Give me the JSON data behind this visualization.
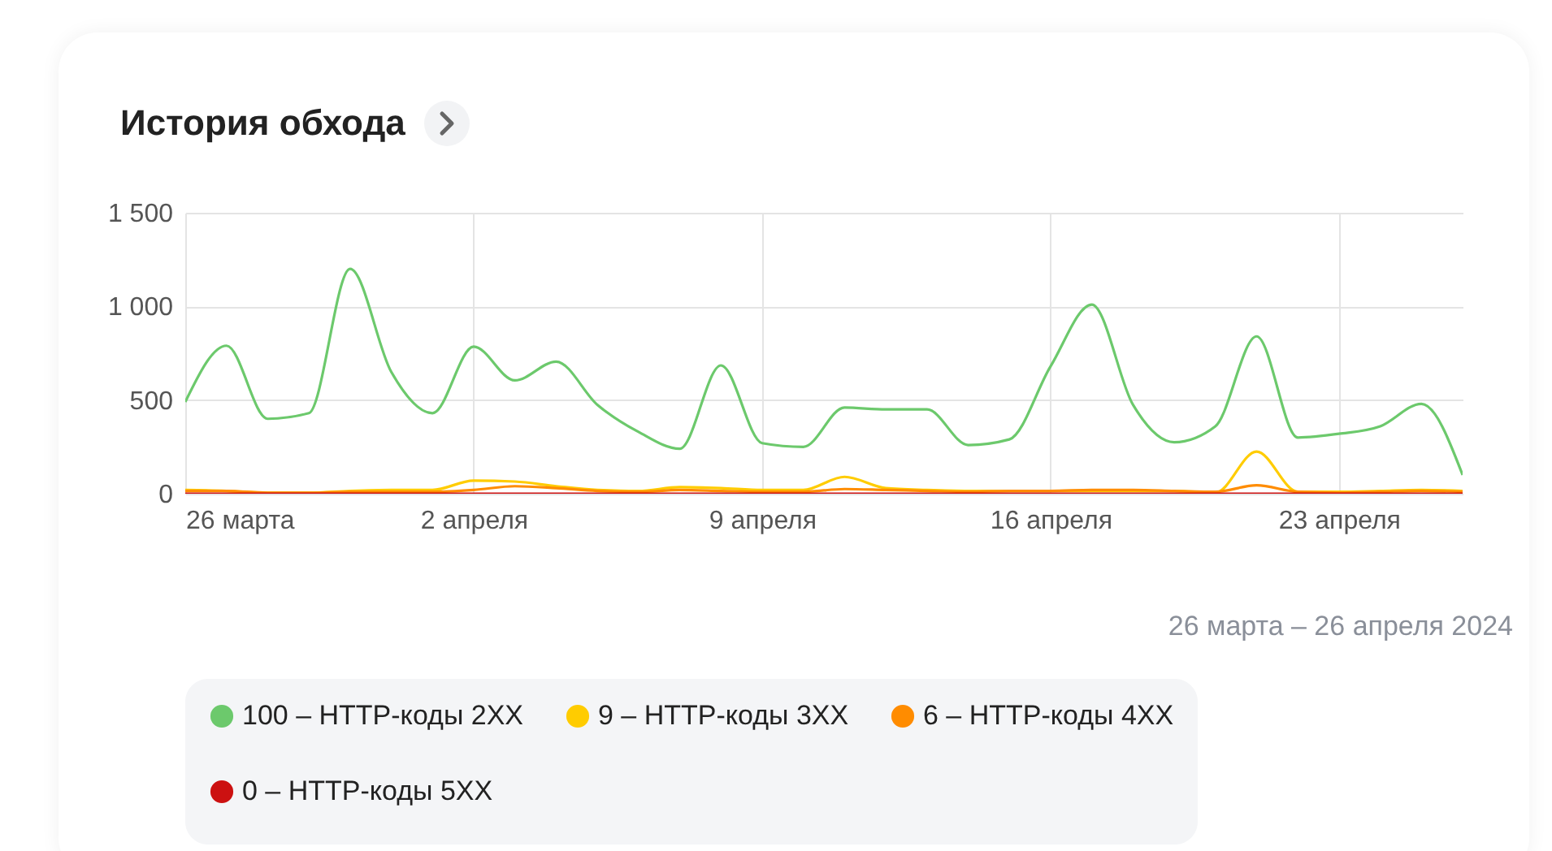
{
  "chart_data": {
    "type": "line",
    "title": "История обхода",
    "annotations": [
      "26 марта – 26 апреля 2024"
    ],
    "x": [
      "2024-03-26",
      "2024-03-27",
      "2024-03-28",
      "2024-03-29",
      "2024-03-30",
      "2024-03-31",
      "2024-04-01",
      "2024-04-02",
      "2024-04-03",
      "2024-04-04",
      "2024-04-05",
      "2024-04-06",
      "2024-04-07",
      "2024-04-08",
      "2024-04-09",
      "2024-04-10",
      "2024-04-11",
      "2024-04-12",
      "2024-04-13",
      "2024-04-14",
      "2024-04-15",
      "2024-04-16",
      "2024-04-17",
      "2024-04-18",
      "2024-04-19",
      "2024-04-20",
      "2024-04-21",
      "2024-04-22",
      "2024-04-23",
      "2024-04-24",
      "2024-04-25",
      "2024-04-26"
    ],
    "series": [
      {
        "name": "100 – HTTP-коды 2XX",
        "color": "#6cc96c",
        "values": [
          490,
          790,
          400,
          430,
          1200,
          650,
          430,
          785,
          605,
          705,
          475,
          330,
          240,
          685,
          270,
          250,
          460,
          450,
          450,
          260,
          290,
          680,
          1010,
          475,
          275,
          360,
          840,
          300,
          320,
          360,
          480,
          100
        ]
      },
      {
        "name": "9 – HTTP-коды 3XX",
        "color": "#ffcc00",
        "values": [
          20,
          15,
          5,
          5,
          15,
          20,
          20,
          70,
          65,
          40,
          20,
          15,
          35,
          30,
          20,
          20,
          90,
          30,
          20,
          15,
          15,
          15,
          15,
          15,
          15,
          5,
          225,
          10,
          10,
          15,
          20,
          15
        ]
      },
      {
        "name": "6 – HTTP-коды 4XX",
        "color": "#ff8c00",
        "values": [
          15,
          15,
          5,
          5,
          10,
          10,
          10,
          20,
          40,
          30,
          15,
          10,
          20,
          15,
          10,
          10,
          25,
          20,
          15,
          10,
          15,
          15,
          20,
          20,
          15,
          10,
          45,
          10,
          5,
          10,
          15,
          10
        ]
      },
      {
        "name": "0 – HTTP-коды 5XX",
        "color": "#cc1111",
        "values": [
          0,
          0,
          0,
          0,
          0,
          0,
          0,
          0,
          0,
          0,
          0,
          0,
          0,
          0,
          0,
          0,
          0,
          0,
          0,
          0,
          0,
          0,
          0,
          0,
          0,
          0,
          0,
          0,
          0,
          0,
          0,
          0
        ]
      }
    ],
    "xlim": [
      "2024-03-26",
      "2024-04-26"
    ],
    "xticks": [
      {
        "value": "2024-03-26",
        "label": "26 марта"
      },
      {
        "value": "2024-04-02",
        "label": "2 апреля"
      },
      {
        "value": "2024-04-09",
        "label": "9 апреля"
      },
      {
        "value": "2024-04-16",
        "label": "16 апреля"
      },
      {
        "value": "2024-04-23",
        "label": "23 апреля"
      }
    ],
    "ylim": [
      0,
      1500
    ],
    "yticks": [
      0,
      500,
      {
        "value": 1000,
        "label": "1 000"
      },
      {
        "value": 1500,
        "label": "1 500"
      }
    ],
    "grid": true,
    "legend": "bottom",
    "line_style": "solid",
    "marker": "none"
  }
}
